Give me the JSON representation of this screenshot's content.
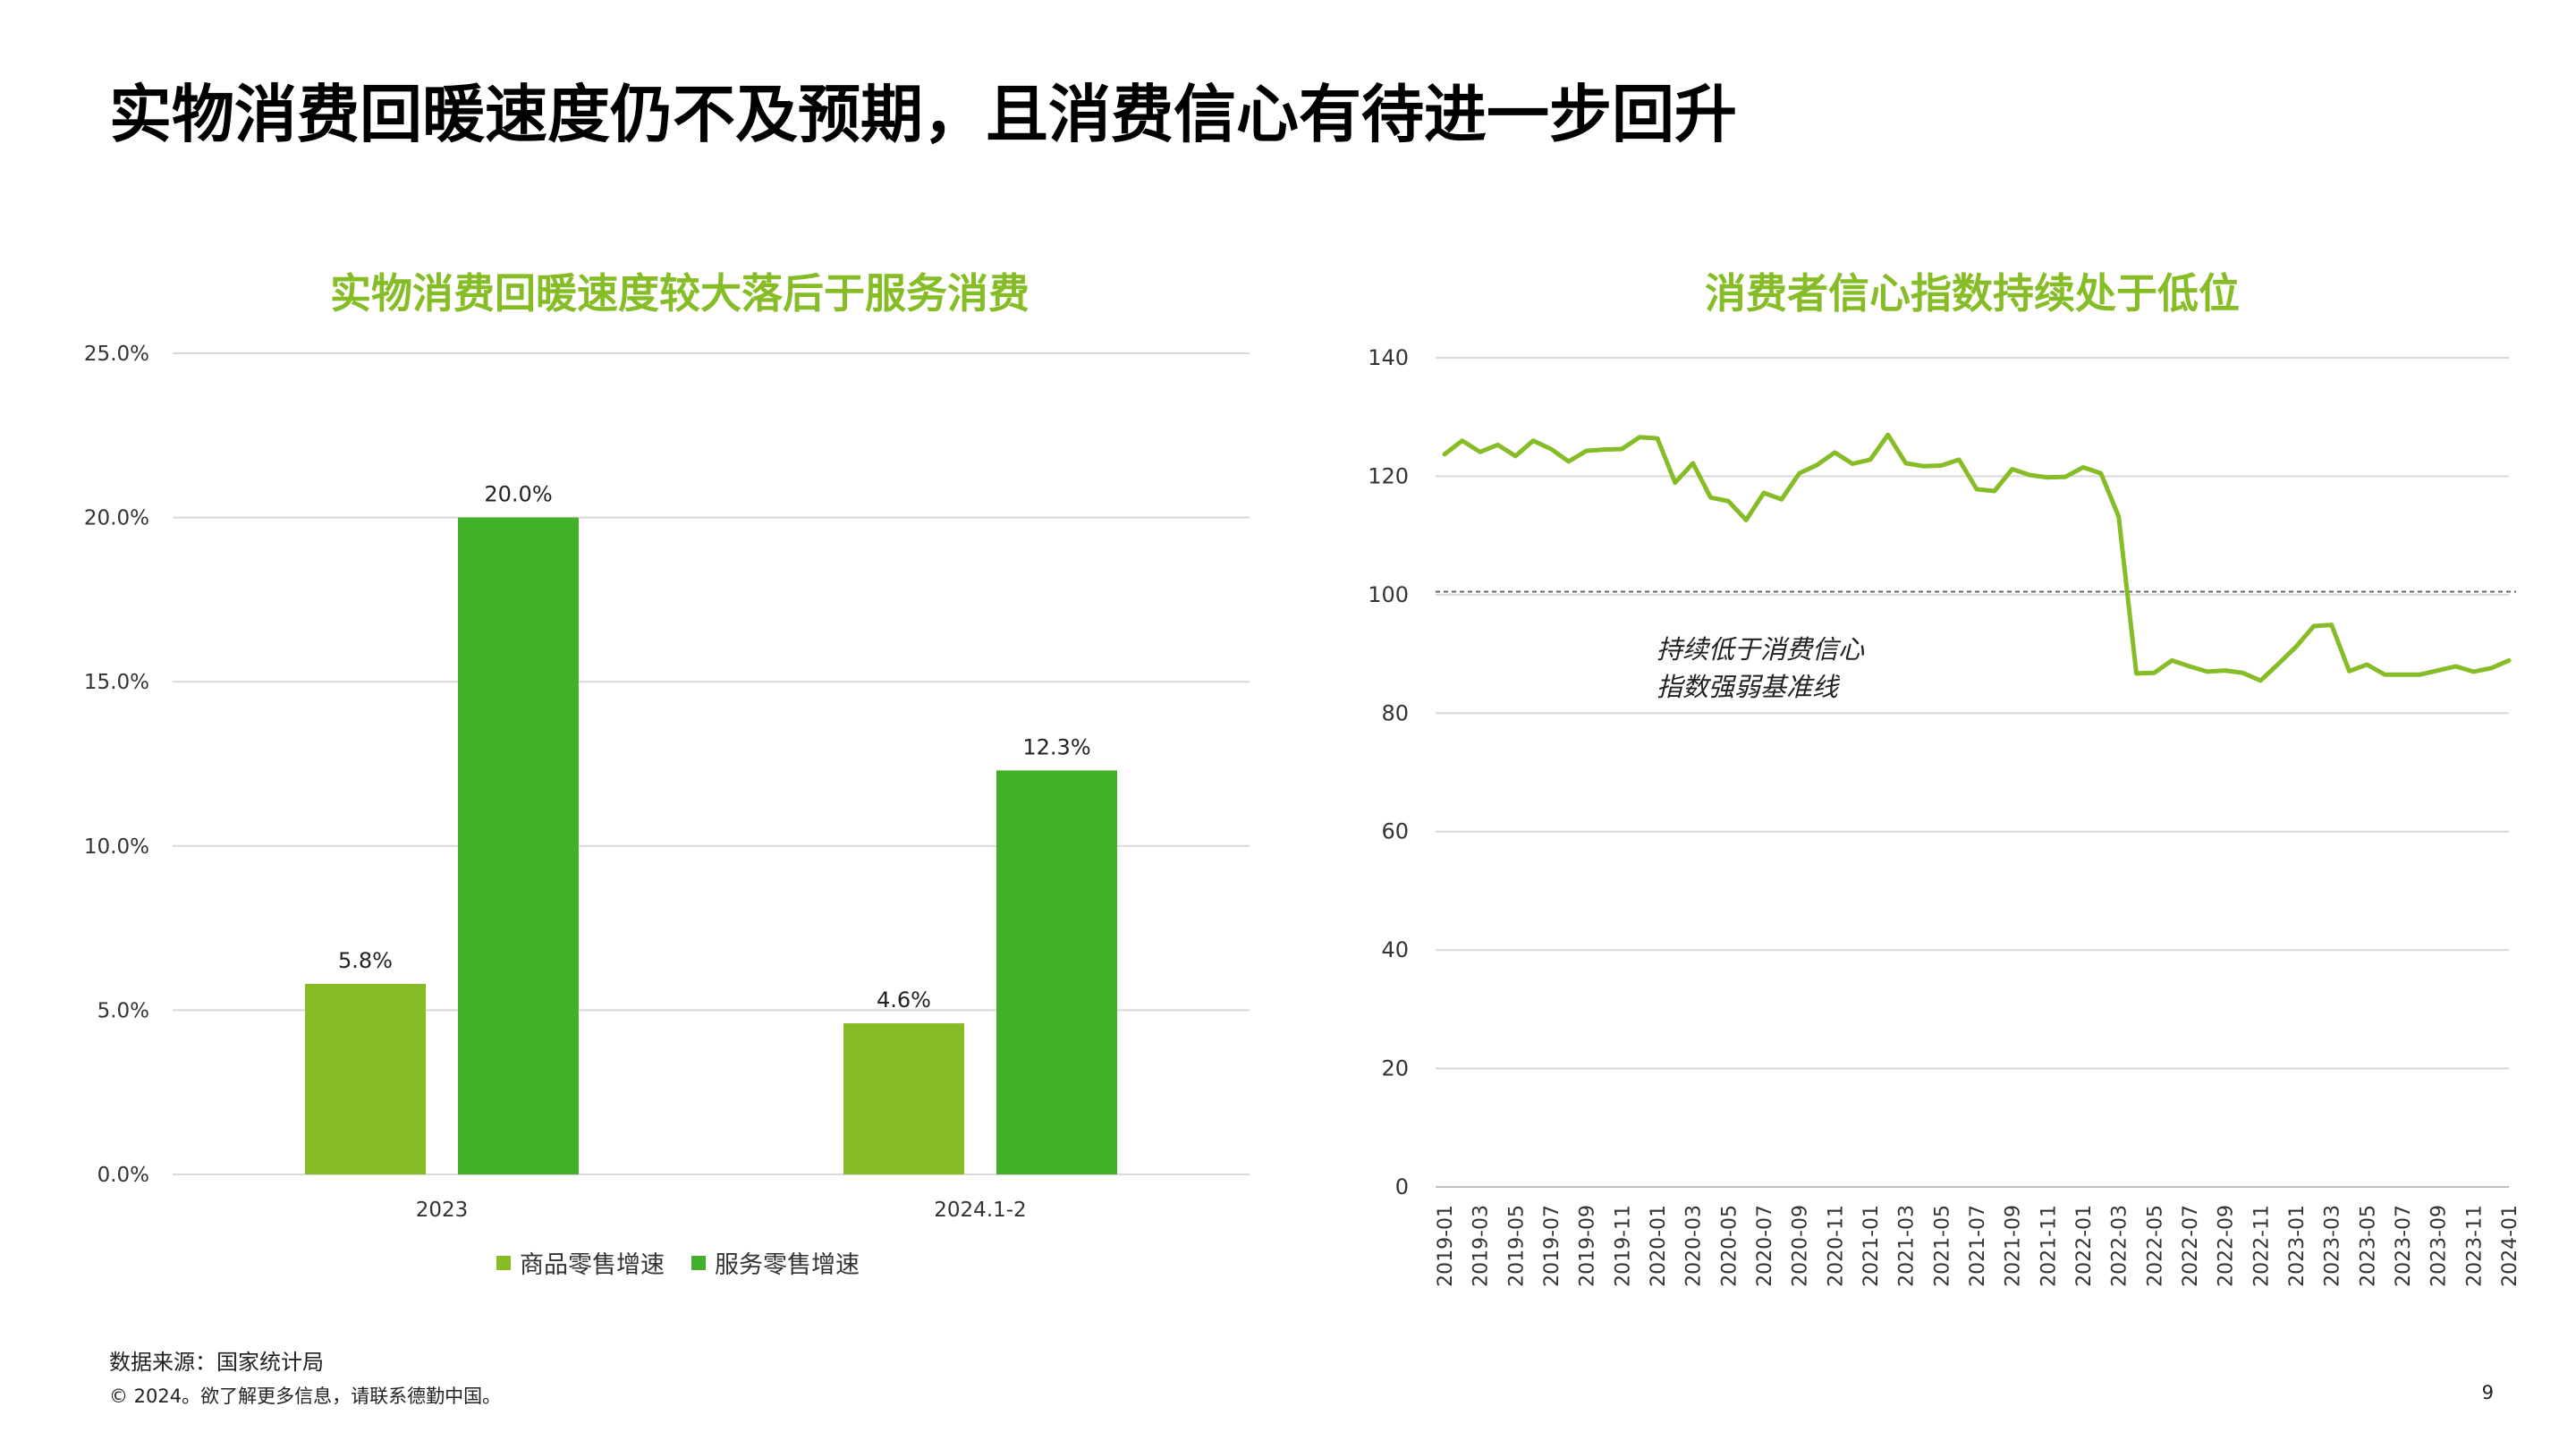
{
  "slide": {
    "title": "实物消费回暖速度仍不及预期，且消费信心有待进一步回升",
    "source": "数据来源：国家统计局",
    "copyright": "© 2024。欲了解更多信息，请联系德勤中国。",
    "page_number": "9"
  },
  "colors": {
    "title_green": "#86BC25",
    "bar_light_green": "#86BC25",
    "bar_dark_green": "#43B02A",
    "line_green": "#86BC25",
    "gridline": "#D9D9D9",
    "axis_text": "#333333",
    "reference_line": "#666666"
  },
  "chart_data": [
    {
      "type": "bar",
      "title": "实物消费回暖速度较大落后于服务消费",
      "categories": [
        "2023",
        "2024.1-2"
      ],
      "series": [
        {
          "name": "商品零售增速",
          "values": [
            5.8,
            4.6
          ],
          "labels": [
            "5.8%",
            "4.6%"
          ],
          "color": "#86BC25"
        },
        {
          "name": "服务零售增速",
          "values": [
            20.0,
            12.3
          ],
          "labels": [
            "20.0%",
            "12.3%"
          ],
          "color": "#43B02A"
        }
      ],
      "ylim": [
        0,
        25
      ],
      "yticks": [
        0,
        5,
        10,
        15,
        20,
        25
      ],
      "ytick_labels": [
        "0.0%",
        "5.0%",
        "10.0%",
        "15.0%",
        "20.0%",
        "25.0%"
      ],
      "grid": true,
      "legend_position": "bottom"
    },
    {
      "type": "line",
      "title": "消费者信心指数持续处于低位",
      "x": [
        "2019-01",
        "2019-02",
        "2019-03",
        "2019-04",
        "2019-05",
        "2019-06",
        "2019-07",
        "2019-08",
        "2019-09",
        "2019-10",
        "2019-11",
        "2019-12",
        "2020-01",
        "2020-02",
        "2020-03",
        "2020-04",
        "2020-05",
        "2020-06",
        "2020-07",
        "2020-08",
        "2020-09",
        "2020-10",
        "2020-11",
        "2020-12",
        "2021-01",
        "2021-02",
        "2021-03",
        "2021-04",
        "2021-05",
        "2021-06",
        "2021-07",
        "2021-08",
        "2021-09",
        "2021-10",
        "2021-11",
        "2021-12",
        "2022-01",
        "2022-02",
        "2022-03",
        "2022-04",
        "2022-05",
        "2022-06",
        "2022-07",
        "2022-08",
        "2022-09",
        "2022-10",
        "2022-11",
        "2022-12",
        "2023-01",
        "2023-02",
        "2023-03",
        "2023-04",
        "2023-05",
        "2023-06",
        "2023-07",
        "2023-08",
        "2023-09",
        "2023-10",
        "2023-11",
        "2023-12",
        "2024-01"
      ],
      "xtick_labels": [
        "2019-01",
        "2019-03",
        "2019-05",
        "2019-07",
        "2019-09",
        "2019-11",
        "2020-01",
        "2020-03",
        "2020-05",
        "2020-07",
        "2020-09",
        "2020-11",
        "2021-01",
        "2021-03",
        "2021-05",
        "2021-07",
        "2021-09",
        "2021-11",
        "2022-01",
        "2022-03",
        "2022-05",
        "2022-07",
        "2022-09",
        "2022-11",
        "2023-01",
        "2023-03",
        "2023-05",
        "2023-07",
        "2023-09",
        "2023-11",
        "2024-01"
      ],
      "values": [
        123.7,
        126.0,
        124.1,
        125.3,
        123.4,
        126.0,
        124.6,
        122.5,
        124.3,
        124.5,
        124.6,
        126.6,
        126.4,
        118.9,
        122.2,
        116.4,
        115.8,
        112.6,
        117.2,
        116.1,
        120.5,
        121.9,
        124.0,
        122.1,
        122.8,
        127.0,
        122.2,
        121.7,
        121.8,
        122.8,
        117.8,
        117.5,
        121.2,
        120.2,
        119.8,
        119.9,
        121.5,
        120.5,
        113.2,
        86.7,
        86.8,
        88.9,
        87.9,
        87.0,
        87.2,
        86.8,
        85.5,
        88.3,
        91.2,
        94.7,
        94.9,
        87.1,
        88.2,
        86.5,
        86.5,
        86.5,
        87.2,
        87.9,
        87.0,
        87.6,
        88.9
      ],
      "ylim": [
        0,
        140
      ],
      "yticks": [
        0,
        20,
        40,
        60,
        80,
        100,
        120,
        140
      ],
      "reference_line": 100.5,
      "annotation": [
        "持续低于消费信心",
        "指数强弱基准线"
      ],
      "grid": true
    }
  ]
}
